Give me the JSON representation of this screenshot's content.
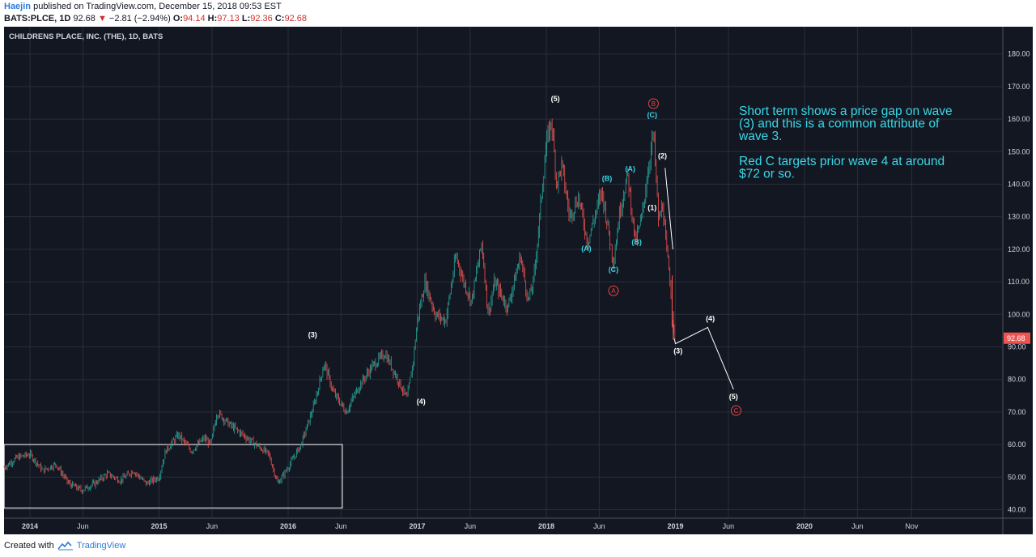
{
  "header": {
    "author": "Haejin",
    "published_text": "published on TradingView.com, December 15, 2018 09:53 EST",
    "symbol": "BATS:PLCE, 1D",
    "last": "92.68",
    "change_arrow": "▼",
    "change": "−2.81 (−2.94%)",
    "o_label": "O:",
    "o_value": "94.14",
    "h_label": "H:",
    "h_value": "97.13",
    "l_label": "L:",
    "l_value": "92.36",
    "c_label": "C:",
    "c_value": "92.68"
  },
  "footer": {
    "created_with": "Created with",
    "brand": "TradingView"
  },
  "colors": {
    "background": "#131722",
    "grid": "#2a2e39",
    "up": "#26a69a",
    "down": "#ef5350",
    "cyan": "#3ad7e6",
    "red_label": "#e84545",
    "white": "#ffffff"
  },
  "chart_data": {
    "type": "candlestick",
    "title": "CHILDRENS PLACE, INC. (THE), 1D, BATS",
    "price_ticks": [
      "40.00",
      "50.00",
      "60.00",
      "70.00",
      "80.00",
      "90.00",
      "100.00",
      "110.00",
      "120.00",
      "130.00",
      "140.00",
      "150.00",
      "160.00",
      "170.00",
      "180.00"
    ],
    "ylim": [
      30,
      181
    ],
    "last_price_label": "92.68",
    "time_ticks": [
      {
        "label": "2014",
        "t": 2014.0
      },
      {
        "label": "Jun",
        "t": 2014.41
      },
      {
        "label": "2015",
        "t": 2015.0
      },
      {
        "label": "Jun",
        "t": 2015.41
      },
      {
        "label": "2016",
        "t": 2016.0
      },
      {
        "label": "Jun",
        "t": 2016.41
      },
      {
        "label": "2017",
        "t": 2017.0
      },
      {
        "label": "Jun",
        "t": 2017.41
      },
      {
        "label": "2018",
        "t": 2018.0
      },
      {
        "label": "Jun",
        "t": 2018.41
      },
      {
        "label": "2019",
        "t": 2019.0
      },
      {
        "label": "Jun",
        "t": 2019.41
      },
      {
        "label": "2020",
        "t": 2020.0
      },
      {
        "label": "Jun",
        "t": 2020.41
      },
      {
        "label": "Nov",
        "t": 2020.83
      }
    ],
    "xlim": [
      2013.8,
      2021.4
    ],
    "price_path": [
      [
        2013.8,
        53
      ],
      [
        2013.9,
        56
      ],
      [
        2014.0,
        57
      ],
      [
        2014.1,
        52
      ],
      [
        2014.2,
        54
      ],
      [
        2014.3,
        48
      ],
      [
        2014.4,
        46
      ],
      [
        2014.5,
        48
      ],
      [
        2014.6,
        51
      ],
      [
        2014.7,
        49
      ],
      [
        2014.8,
        52
      ],
      [
        2014.9,
        48
      ],
      [
        2015.0,
        50
      ],
      [
        2015.05,
        58
      ],
      [
        2015.15,
        63
      ],
      [
        2015.25,
        58
      ],
      [
        2015.35,
        62
      ],
      [
        2015.4,
        60
      ],
      [
        2015.45,
        70
      ],
      [
        2015.55,
        66
      ],
      [
        2015.65,
        63
      ],
      [
        2015.75,
        60
      ],
      [
        2015.85,
        57
      ],
      [
        2015.92,
        48
      ],
      [
        2016.0,
        53
      ],
      [
        2016.1,
        60
      ],
      [
        2016.2,
        72
      ],
      [
        2016.28,
        85
      ],
      [
        2016.35,
        76
      ],
      [
        2016.45,
        70
      ],
      [
        2016.55,
        78
      ],
      [
        2016.65,
        84
      ],
      [
        2016.75,
        88
      ],
      [
        2016.85,
        80
      ],
      [
        2016.92,
        74
      ],
      [
        2016.97,
        86
      ],
      [
        2017.0,
        98
      ],
      [
        2017.06,
        110
      ],
      [
        2017.14,
        100
      ],
      [
        2017.22,
        98
      ],
      [
        2017.3,
        118
      ],
      [
        2017.36,
        110
      ],
      [
        2017.42,
        104
      ],
      [
        2017.5,
        122
      ],
      [
        2017.55,
        100
      ],
      [
        2017.6,
        110
      ],
      [
        2017.7,
        102
      ],
      [
        2017.8,
        118
      ],
      [
        2017.86,
        104
      ],
      [
        2017.9,
        110
      ],
      [
        2017.93,
        122
      ],
      [
        2017.97,
        140
      ],
      [
        2018.0,
        152
      ],
      [
        2018.04,
        160
      ],
      [
        2018.08,
        140
      ],
      [
        2018.12,
        146
      ],
      [
        2018.18,
        130
      ],
      [
        2018.25,
        136
      ],
      [
        2018.32,
        122
      ],
      [
        2018.36,
        128
      ],
      [
        2018.43,
        138
      ],
      [
        2018.48,
        126
      ],
      [
        2018.52,
        116
      ],
      [
        2018.57,
        132
      ],
      [
        2018.63,
        143
      ],
      [
        2018.69,
        122
      ],
      [
        2018.74,
        130
      ],
      [
        2018.79,
        145
      ],
      [
        2018.83,
        156
      ],
      [
        2018.87,
        128
      ],
      [
        2018.9,
        134
      ],
      [
        2018.93,
        120
      ],
      [
        2018.96,
        110
      ],
      [
        2018.98,
        95
      ],
      [
        2018.99,
        92.68
      ]
    ],
    "projection_line": [
      [
        2019.0,
        91
      ],
      [
        2019.25,
        96
      ],
      [
        2019.45,
        77
      ],
      [
        2018.92,
        145
      ],
      [
        2018.98,
        120
      ]
    ],
    "box": {
      "t0": 2013.8,
      "t1": 2016.42,
      "p0": 40.5,
      "p1": 60
    },
    "annotations": [
      {
        "text": "(5)",
        "t": 2018.07,
        "p": 165.5,
        "color": "white"
      },
      {
        "text": "(3)",
        "t": 2016.19,
        "p": 93,
        "color": "white"
      },
      {
        "text": "(4)",
        "t": 2017.03,
        "p": 72.5,
        "color": "white"
      },
      {
        "text": "(2)",
        "t": 2018.9,
        "p": 148,
        "color": "white"
      },
      {
        "text": "(1)",
        "t": 2018.82,
        "p": 132,
        "color": "white"
      },
      {
        "text": "(3)",
        "t": 2019.02,
        "p": 88,
        "color": "white"
      },
      {
        "text": "(4)",
        "t": 2019.27,
        "p": 98,
        "color": "white"
      },
      {
        "text": "(5)",
        "t": 2019.45,
        "p": 74,
        "color": "white"
      },
      {
        "text": "(C)",
        "t": 2018.82,
        "p": 160.5,
        "color": "cyan"
      },
      {
        "text": "(B)",
        "t": 2018.47,
        "p": 141,
        "color": "cyan"
      },
      {
        "text": "(A)",
        "t": 2018.65,
        "p": 144,
        "color": "cyan"
      },
      {
        "text": "(A)",
        "t": 2018.31,
        "p": 119.5,
        "color": "cyan"
      },
      {
        "text": "(C)",
        "t": 2018.52,
        "p": 113,
        "color": "cyan"
      },
      {
        "text": "(B)",
        "t": 2018.7,
        "p": 121.5,
        "color": "cyan"
      }
    ],
    "circled_labels": [
      {
        "text": "B",
        "t": 2018.83,
        "p": 164,
        "color": "red"
      },
      {
        "text": "A",
        "t": 2018.52,
        "p": 106.5,
        "color": "red"
      },
      {
        "text": "C",
        "t": 2019.47,
        "p": 69.7,
        "color": "red"
      }
    ],
    "note_lines": [
      "Short term shows a price gap on wave",
      "(3) and this is a common attribute of",
      "wave 3.",
      "",
      "Red C targets prior wave 4 at around",
      "$72 or so."
    ]
  }
}
